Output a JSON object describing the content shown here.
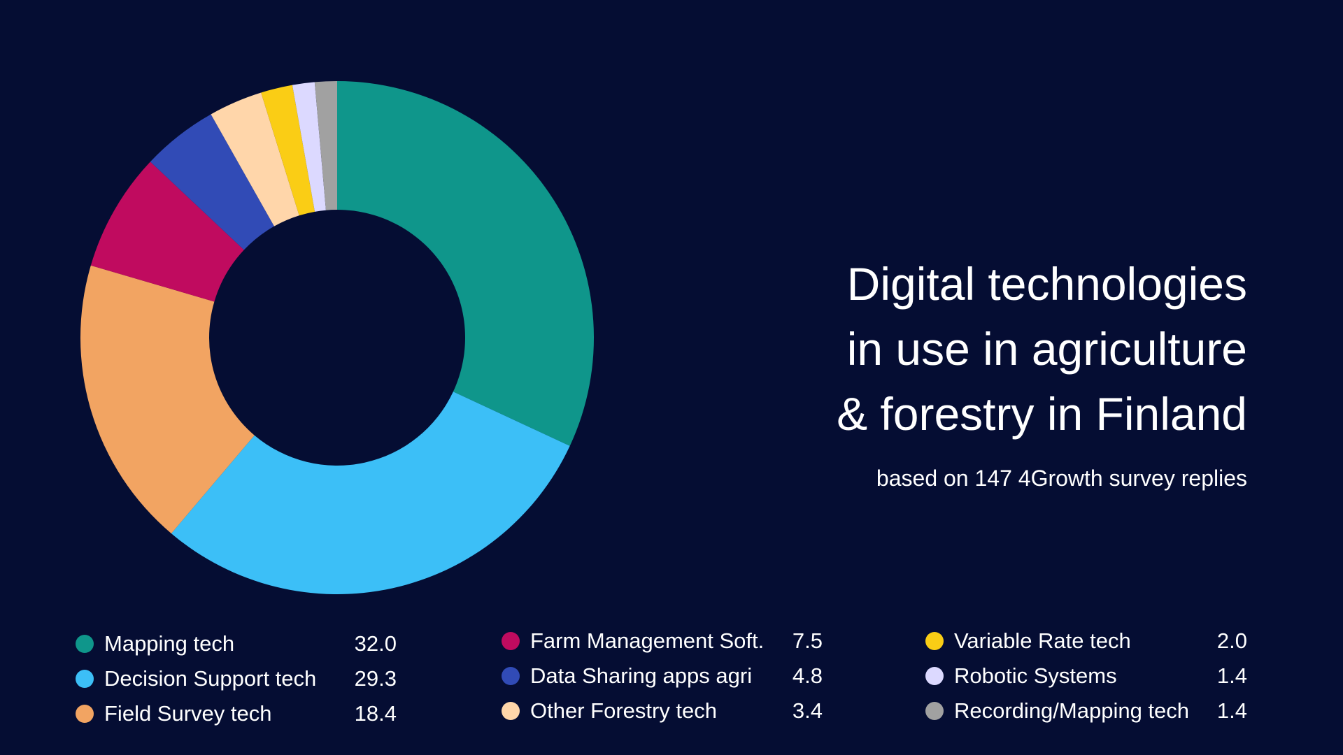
{
  "title_lines": [
    "Digital technologies",
    "in use in agriculture",
    "& forestry in Finland"
  ],
  "subtitle": "based on 147 4Growth survey replies",
  "chart_data": {
    "type": "pie",
    "variant": "donut",
    "title": "Digital technologies in use in agriculture & forestry in Finland",
    "subtitle": "based on 147 4Growth survey replies",
    "start": "top, clockwise",
    "legend_placement": "bottom",
    "slices": [
      {
        "label": "Mapping tech",
        "value": 32.0,
        "value_text": "32.0",
        "color": "#0f968b"
      },
      {
        "label": "Decision Support tech",
        "value": 29.3,
        "value_text": "29.3",
        "color": "#3cbff7"
      },
      {
        "label": "Field Survey tech",
        "value": 18.4,
        "value_text": "18.4",
        "color": "#f2a462"
      },
      {
        "label": "Farm Management Soft.",
        "value": 7.5,
        "value_text": "7.5",
        "color": "#c00b5f"
      },
      {
        "label": "Data Sharing apps agri",
        "value": 4.8,
        "value_text": "4.8",
        "color": "#314bb6"
      },
      {
        "label": "Other Forestry tech",
        "value": 3.4,
        "value_text": "3.4",
        "color": "#ffd6aa"
      },
      {
        "label": "Variable Rate tech",
        "value": 2.0,
        "value_text": "2.0",
        "color": "#facd15"
      },
      {
        "label": "Robotic Systems",
        "value": 1.4,
        "value_text": "1.4",
        "color": "#dcd9ff"
      },
      {
        "label": "Recording/Mapping tech",
        "value": 1.4,
        "value_text": "1.4",
        "color": "#a1a1a1"
      }
    ]
  }
}
